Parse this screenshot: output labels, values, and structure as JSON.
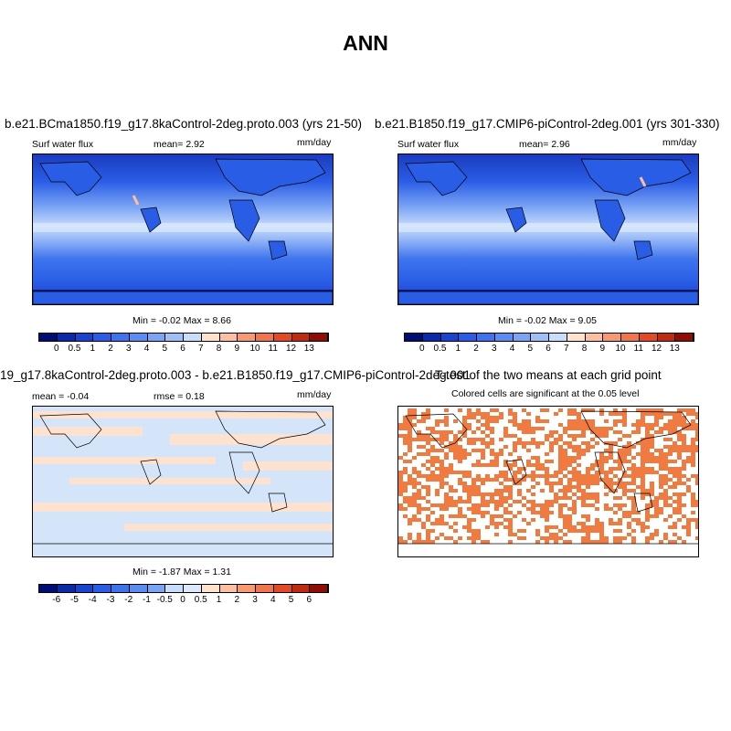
{
  "title": "ANN",
  "panels": [
    {
      "id": "p1",
      "title": "b.e21.BCma1850.f19_g17.8kaControl-2deg.proto.003 (yrs 21-50)",
      "variable": "Surf water flux",
      "stat_left": "mean=   2.92",
      "units": "mm/day",
      "minmax": "Min =  -0.02 Max =   8.66",
      "colorbar_labels": [
        "0",
        "0.5",
        "1",
        "2",
        "3",
        "4",
        "5",
        "6",
        "7",
        "8",
        "9",
        "10",
        "11",
        "12",
        "13"
      ],
      "colorbar_colors": [
        "#000d73",
        "#0a2aa8",
        "#1745d0",
        "#2a5de6",
        "#3d74ee",
        "#5a8cf2",
        "#7aa4f4",
        "#9fbff8",
        "#c8dcfb",
        "#ffe1cc",
        "#fcc0a0",
        "#f79a72",
        "#f0754a",
        "#e14a24",
        "#c02a10",
        "#8f0d02"
      ],
      "fill": "blue-field"
    },
    {
      "id": "p2",
      "title": "b.e21.B1850.f19_g17.CMIP6-piControl-2deg.001 (yrs 301-330)",
      "variable": "Surf water flux",
      "stat_left": "mean=   2.96",
      "units": "mm/day",
      "minmax": "Min =  -0.02 Max =   9.05",
      "colorbar_labels": [
        "0",
        "0.5",
        "1",
        "2",
        "3",
        "4",
        "5",
        "6",
        "7",
        "8",
        "9",
        "10",
        "11",
        "12",
        "13"
      ],
      "colorbar_colors": [
        "#000d73",
        "#0a2aa8",
        "#1745d0",
        "#2a5de6",
        "#3d74ee",
        "#5a8cf2",
        "#7aa4f4",
        "#9fbff8",
        "#c8dcfb",
        "#ffe1cc",
        "#fcc0a0",
        "#f79a72",
        "#f0754a",
        "#e14a24",
        "#c02a10",
        "#8f0d02"
      ],
      "fill": "blue-field"
    },
    {
      "id": "p3",
      "title": "19_g17.8kaControl-2deg.proto.003 - b.e21.B1850.f19_g17.CMIP6-piControl-2deg.001",
      "variable": "mean =  -0.04",
      "stat_left": "rmse =   0.18",
      "units": "mm/day",
      "minmax": "Min =  -1.87 Max =   1.31",
      "colorbar_labels": [
        "-6",
        "-5",
        "-4",
        "-3",
        "-2",
        "-1",
        "-0.5",
        "0",
        "0.5",
        "1",
        "2",
        "3",
        "4",
        "5",
        "6"
      ],
      "colorbar_colors": [
        "#000d73",
        "#0a2aa8",
        "#1745d0",
        "#2a5de6",
        "#3d74ee",
        "#5a8cf2",
        "#7aa4f4",
        "#c8dcfb",
        "#dce9fc",
        "#ffe1cc",
        "#fcc0a0",
        "#f79a72",
        "#f0754a",
        "#e14a24",
        "#c02a10",
        "#8f0d02"
      ],
      "fill": "diff-field"
    },
    {
      "id": "p4",
      "title": "T-test of the two means at each grid point",
      "subtitle": "Colored cells are significant at the 0.05 level",
      "fill": "sig-field"
    }
  ],
  "colors": {
    "land_outline": "#000000",
    "significant_cell": "#f07a40",
    "diff_positive": "#fde3cf",
    "diff_negative": "#d5e5f9"
  }
}
